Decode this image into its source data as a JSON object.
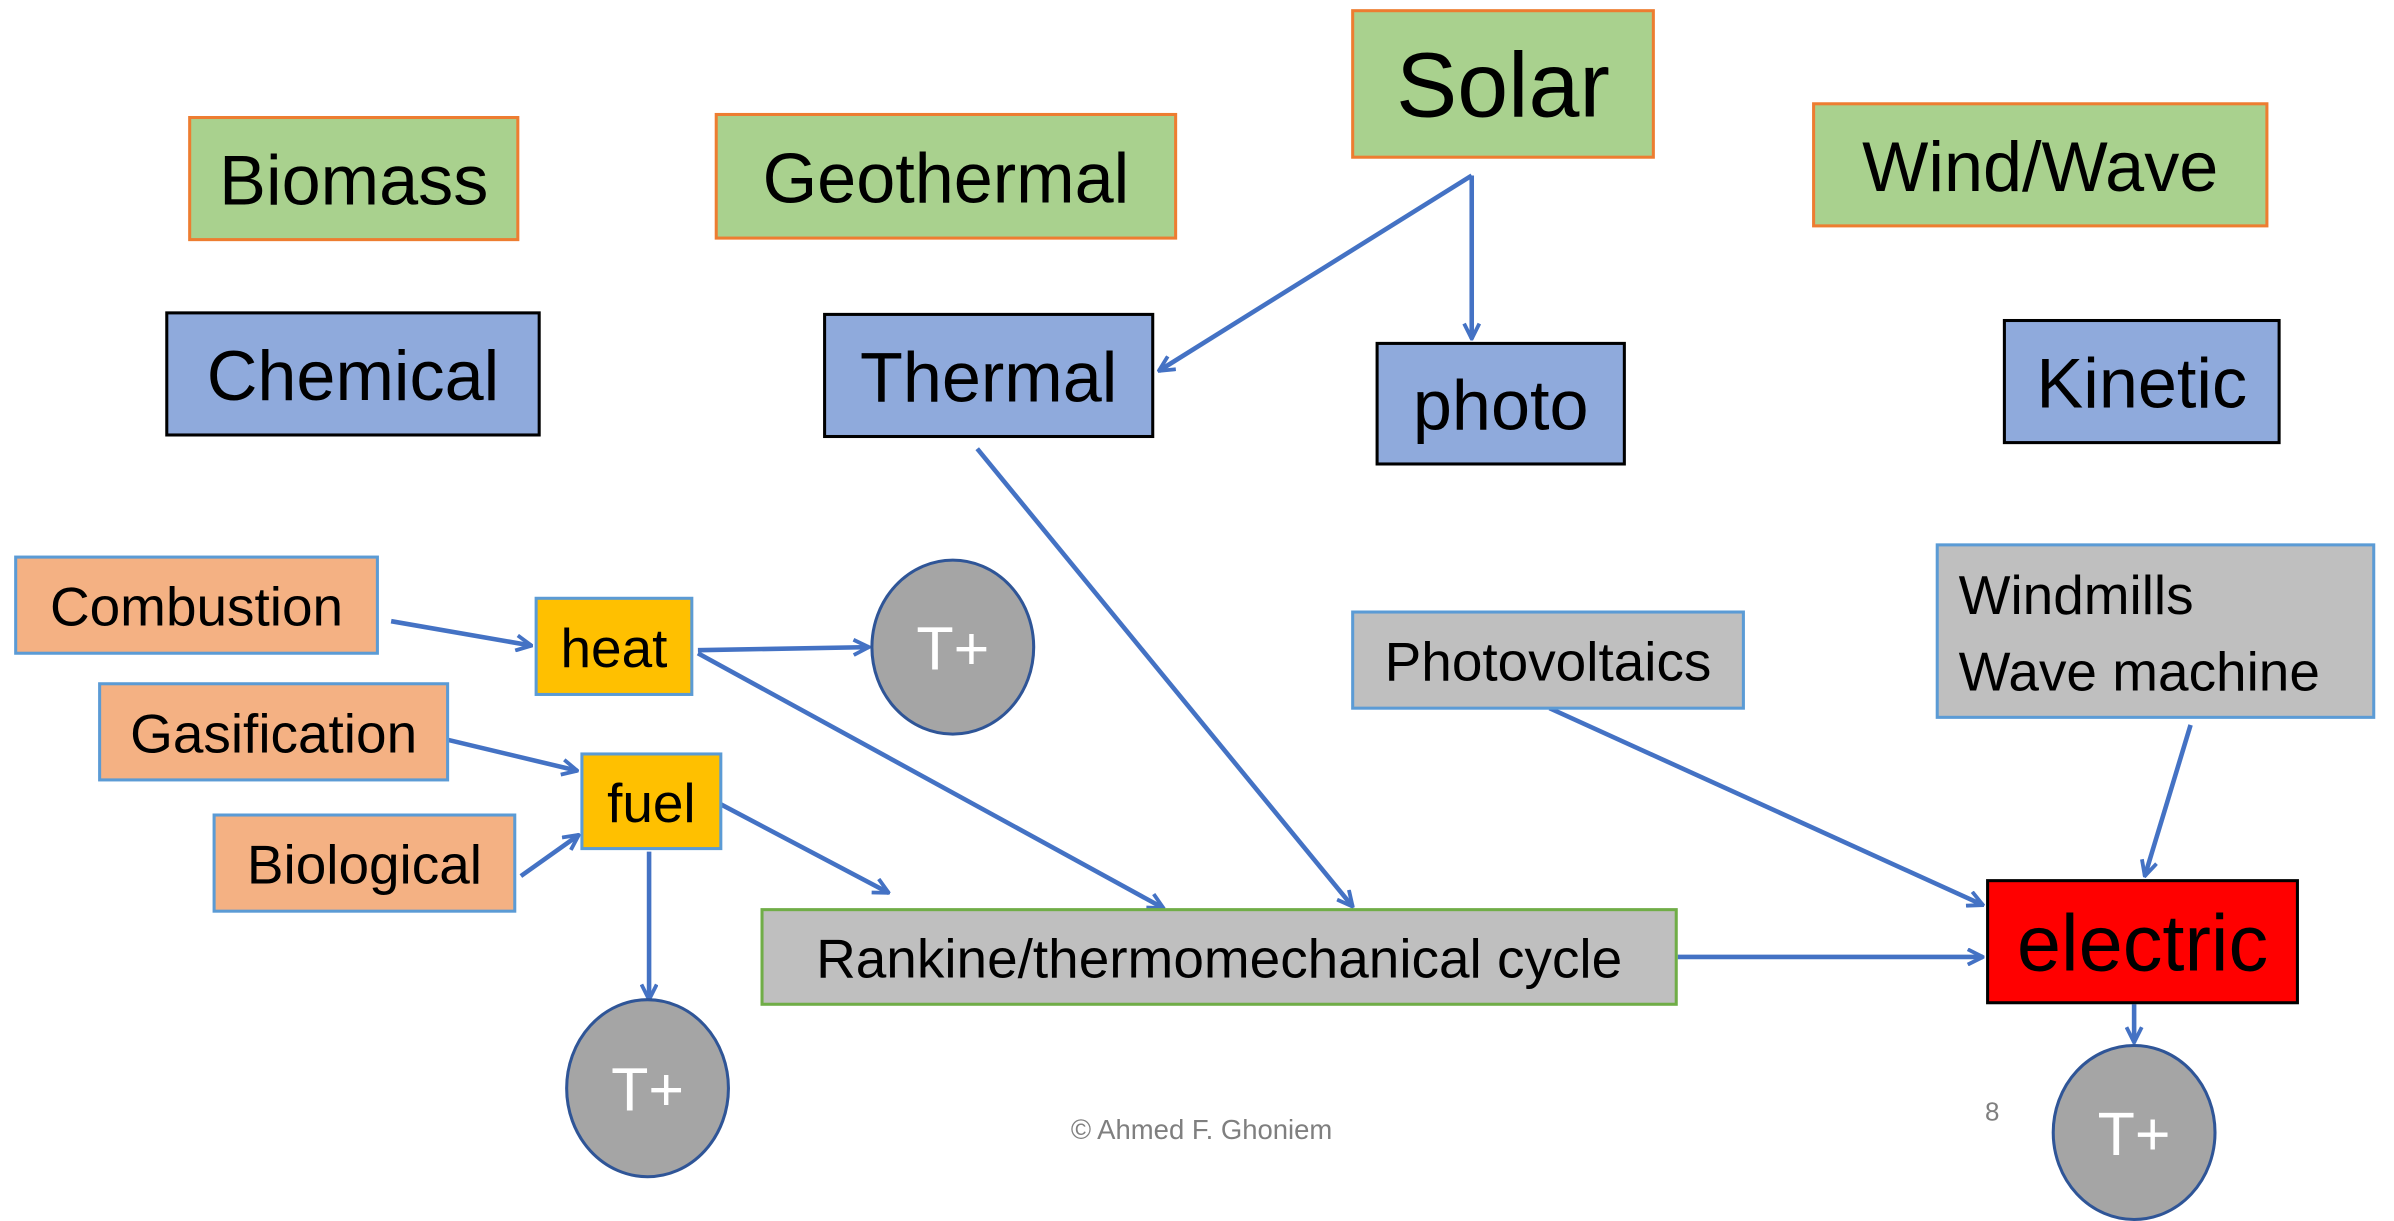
{
  "nodes": [
    {
      "label": "Biomass"
    },
    {
      "label": "Geothermal"
    },
    {
      "label": "Solar"
    },
    {
      "label": "Wind/Wave"
    },
    {
      "label": "Chemical"
    },
    {
      "label": "Thermal"
    },
    {
      "label": "photo"
    },
    {
      "label": "Kinetic"
    },
    {
      "label": "Combustion"
    },
    {
      "label": "Gasification"
    },
    {
      "label": "Biological"
    },
    {
      "label": "heat"
    },
    {
      "label": "fuel"
    },
    {
      "label": "T+"
    },
    {
      "label": "T+"
    },
    {
      "label": "T+"
    },
    {
      "label": "Photovoltaics"
    },
    {
      "lines": [
        "Windmills",
        "Wave machine"
      ]
    },
    {
      "label": "Rankine/thermomechanical cycle"
    },
    {
      "label": "electric"
    }
  ],
  "footer": {
    "copyright": "© Ahmed F. Ghoniem",
    "page": "8"
  }
}
